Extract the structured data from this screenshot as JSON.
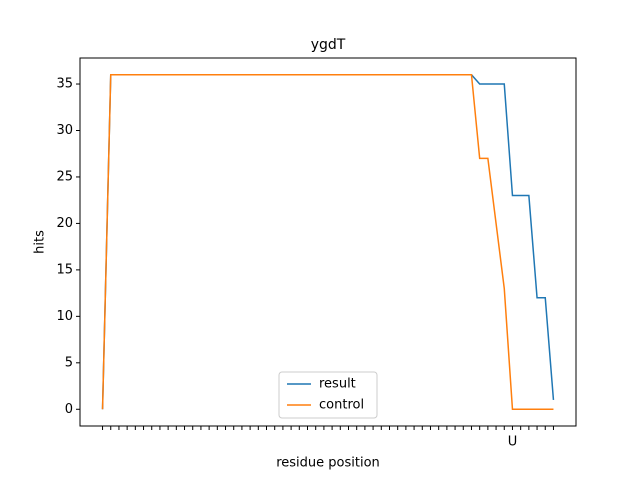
{
  "chart_data": {
    "type": "line",
    "title": "ygdT",
    "xlabel": "residue position",
    "ylabel": "hits",
    "categories": [
      null,
      null,
      null,
      null,
      null,
      null,
      null,
      null,
      null,
      null,
      null,
      null,
      null,
      null,
      null,
      null,
      null,
      null,
      null,
      null,
      null,
      null,
      null,
      null,
      null,
      null,
      null,
      null,
      null,
      null,
      null,
      null,
      null,
      null,
      null,
      null,
      null,
      null,
      null,
      null,
      null,
      null,
      null,
      null,
      null,
      null,
      null,
      null,
      null,
      null,
      "U",
      null,
      null,
      null,
      null,
      null
    ],
    "series": [
      {
        "name": "result",
        "color": "#1f77b4",
        "values": [
          0,
          36,
          36,
          36,
          36,
          36,
          36,
          36,
          36,
          36,
          36,
          36,
          36,
          36,
          36,
          36,
          36,
          36,
          36,
          36,
          36,
          36,
          36,
          36,
          36,
          36,
          36,
          36,
          36,
          36,
          36,
          36,
          36,
          36,
          36,
          36,
          36,
          36,
          36,
          36,
          36,
          36,
          36,
          36,
          36,
          36,
          35,
          35,
          35,
          35,
          23,
          23,
          23,
          12,
          12,
          1
        ]
      },
      {
        "name": "control",
        "color": "#ff7f0e",
        "values": [
          0,
          36,
          36,
          36,
          36,
          36,
          36,
          36,
          36,
          36,
          36,
          36,
          36,
          36,
          36,
          36,
          36,
          36,
          36,
          36,
          36,
          36,
          36,
          36,
          36,
          36,
          36,
          36,
          36,
          36,
          36,
          36,
          36,
          36,
          36,
          36,
          36,
          36,
          36,
          36,
          36,
          36,
          36,
          36,
          36,
          36,
          27,
          27,
          20,
          13,
          0,
          0,
          0,
          0,
          0,
          0
        ]
      }
    ],
    "xlim": [
      -2.75,
      57.75
    ],
    "ylim": [
      -1.8,
      37.8
    ],
    "yticks": [
      0,
      5,
      10,
      15,
      20,
      25,
      30,
      35
    ],
    "legend": "lower center"
  }
}
